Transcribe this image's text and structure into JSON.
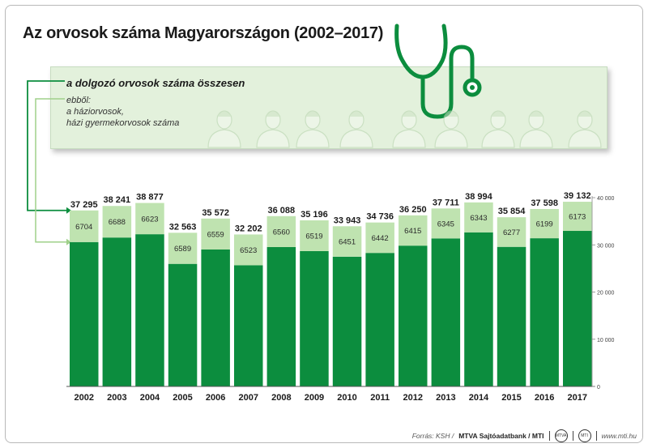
{
  "chart_data": {
    "type": "bar",
    "title": "Az orvosok száma Magyarországon (2002–2017)",
    "categories": [
      "2002",
      "2003",
      "2004",
      "2005",
      "2006",
      "2007",
      "2008",
      "2009",
      "2010",
      "2011",
      "2012",
      "2013",
      "2014",
      "2015",
      "2016",
      "2017"
    ],
    "series": [
      {
        "name": "a dolgozó orvosok száma összesen",
        "values": [
          37295,
          38241,
          38877,
          32563,
          35572,
          32202,
          36088,
          35196,
          33943,
          34736,
          36250,
          37711,
          38994,
          35854,
          37598,
          39132
        ],
        "labels": [
          "37 295",
          "38 241",
          "38 877",
          "32 563",
          "35 572",
          "32 202",
          "36 088",
          "35 196",
          "33 943",
          "34 736",
          "36 250",
          "37 711",
          "38 994",
          "35 854",
          "37 598",
          "39 132"
        ]
      },
      {
        "name_lines": [
          "ebből:",
          "a háziorvosok,",
          "házi gyermekorvosok száma"
        ],
        "values": [
          6704,
          6688,
          6623,
          6589,
          6559,
          6523,
          6560,
          6519,
          6451,
          6442,
          6415,
          6345,
          6343,
          6277,
          6199,
          6173
        ]
      }
    ],
    "ylim": [
      0,
      40000
    ],
    "yticks": [
      0,
      10000,
      20000,
      30000,
      40000
    ],
    "ytick_labels": [
      "0",
      "10 000",
      "20 000",
      "30 000",
      "40 000"
    ],
    "colors": {
      "total": "#0c8d3e",
      "gp": "#bfe3b0",
      "legend_bg": "#e3f1dc"
    }
  },
  "footer": {
    "source_prefix": "Forrás: KSH /",
    "source_bold": "MTVA Sajtóadatbank / MTI",
    "logo1": "MTVA",
    "logo2": "MTI",
    "website": "www.mti.hu"
  }
}
